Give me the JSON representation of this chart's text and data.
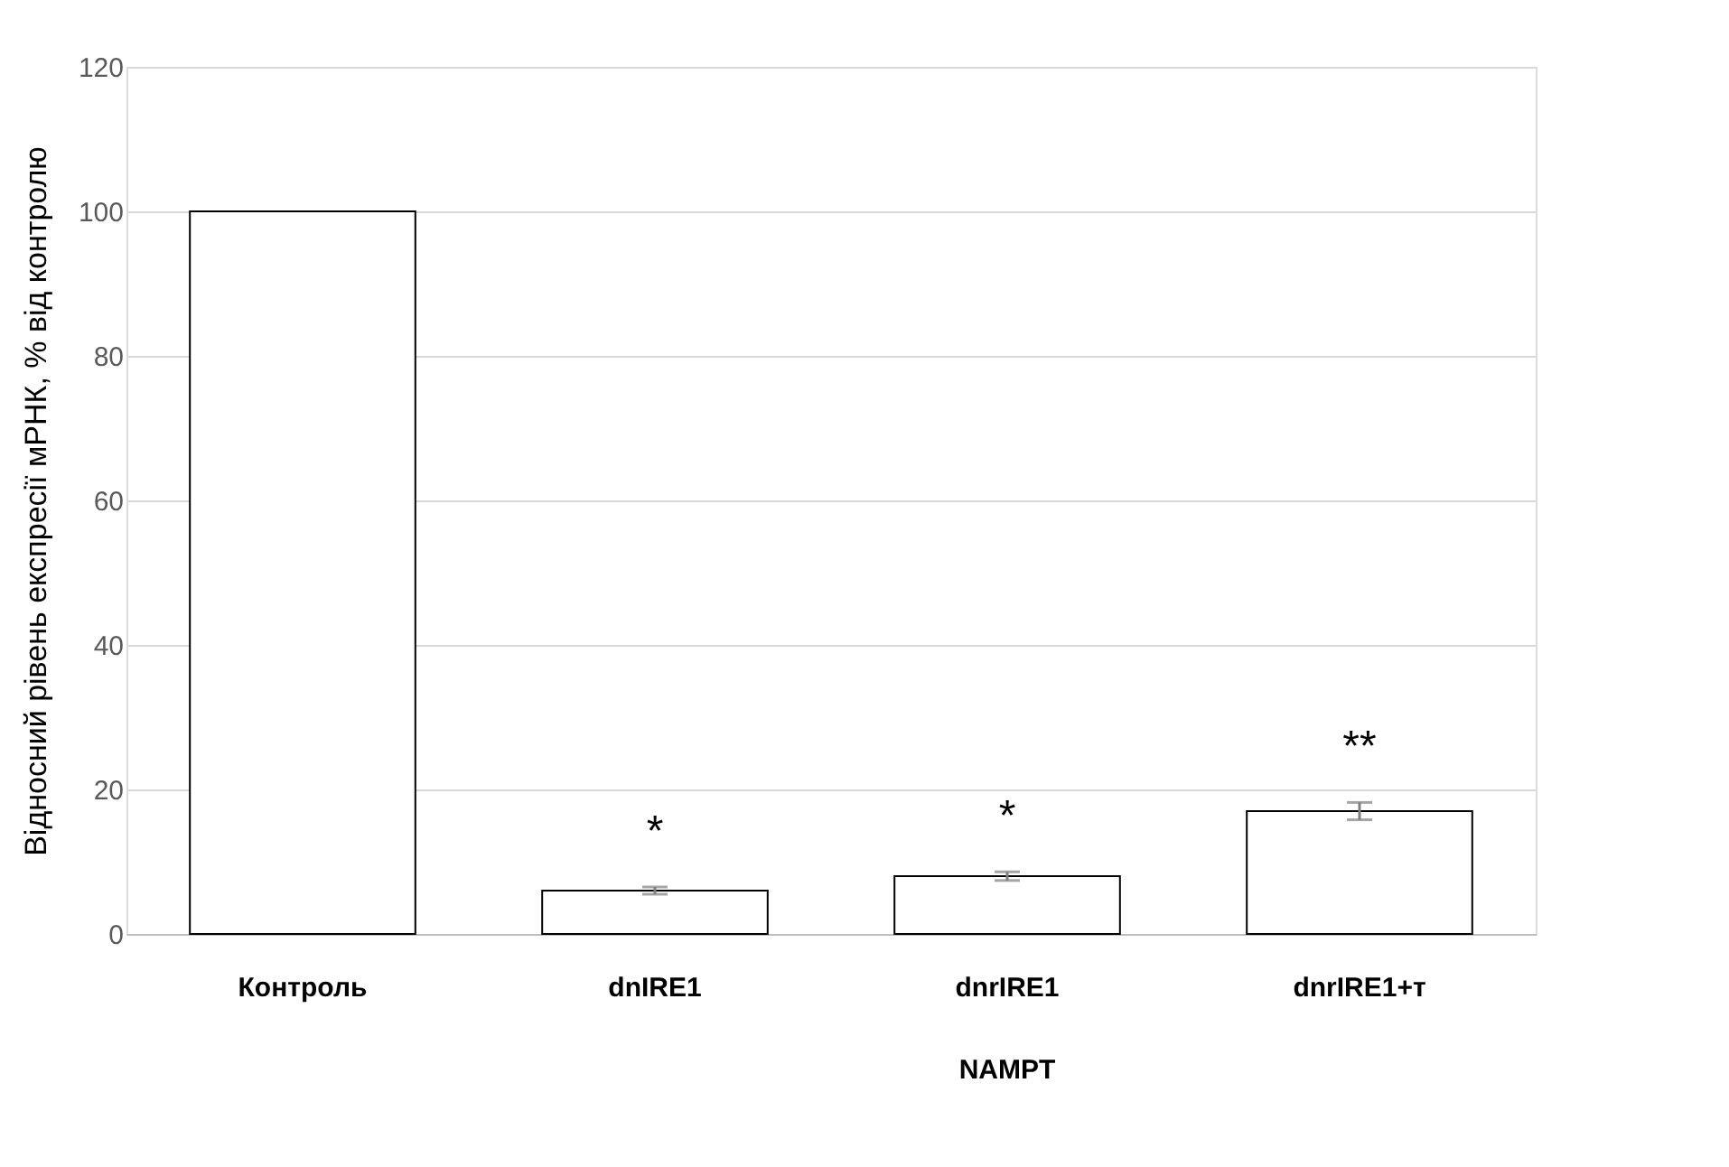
{
  "chart_data": {
    "type": "bar",
    "ylabel": "Відносний рівень експресії мРНК, % від контролю",
    "categories": [
      "Контроль",
      "dnIRE1",
      "dnrIRE1",
      "dnrIRE1+т"
    ],
    "values": [
      100,
      6,
      8,
      17
    ],
    "errors": [
      null,
      0.5,
      0.6,
      1.2
    ],
    "colors": [
      "#ffffff",
      "#ffffff",
      "#ffffff",
      "#ffffff"
    ],
    "ylim": [
      0,
      120
    ],
    "yticks": [
      0,
      20,
      40,
      60,
      80,
      100,
      120
    ],
    "grid": "y",
    "annotations": [
      "*",
      "*",
      "**",
      "NAMPT"
    ]
  }
}
